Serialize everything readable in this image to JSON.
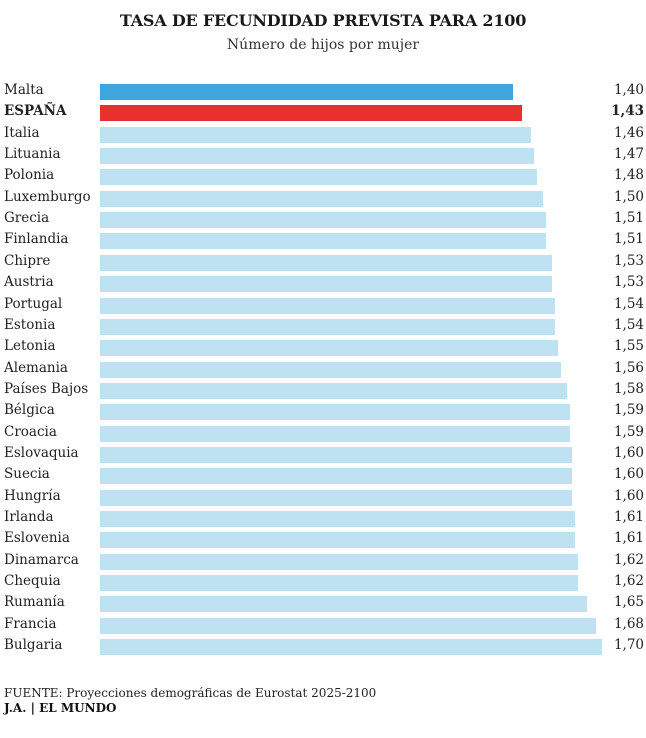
{
  "colors": {
    "highlight_spain": "#e8302f",
    "highlight_malta": "#3ea6dd",
    "default_bar": "#bfe2f3"
  },
  "chart_data": {
    "type": "bar",
    "orientation": "horizontal",
    "title": "TASA DE FECUNDIDAD PREVISTA PARA 2100",
    "subtitle": "Número de hijos por mujer",
    "xlim": [
      0,
      1.7
    ],
    "items": [
      {
        "label": "Malta",
        "value": 1.4,
        "display": "1,40",
        "style": "malta"
      },
      {
        "label": "ESPAÑA",
        "value": 1.43,
        "display": "1,43",
        "style": "spain"
      },
      {
        "label": "Italia",
        "value": 1.46,
        "display": "1,46",
        "style": "default"
      },
      {
        "label": "Lituania",
        "value": 1.47,
        "display": "1,47",
        "style": "default"
      },
      {
        "label": "Polonia",
        "value": 1.48,
        "display": "1,48",
        "style": "default"
      },
      {
        "label": "Luxemburgo",
        "value": 1.5,
        "display": "1,50",
        "style": "default"
      },
      {
        "label": "Grecia",
        "value": 1.51,
        "display": "1,51",
        "style": "default"
      },
      {
        "label": "Finlandia",
        "value": 1.51,
        "display": "1,51",
        "style": "default"
      },
      {
        "label": "Chipre",
        "value": 1.53,
        "display": "1,53",
        "style": "default"
      },
      {
        "label": "Austria",
        "value": 1.53,
        "display": "1,53",
        "style": "default"
      },
      {
        "label": "Portugal",
        "value": 1.54,
        "display": "1,54",
        "style": "default"
      },
      {
        "label": "Estonia",
        "value": 1.54,
        "display": "1,54",
        "style": "default"
      },
      {
        "label": "Letonia",
        "value": 1.55,
        "display": "1,55",
        "style": "default"
      },
      {
        "label": "Alemania",
        "value": 1.56,
        "display": "1,56",
        "style": "default"
      },
      {
        "label": "Países Bajos",
        "value": 1.58,
        "display": "1,58",
        "style": "default"
      },
      {
        "label": "Bélgica",
        "value": 1.59,
        "display": "1,59",
        "style": "default"
      },
      {
        "label": "Croacia",
        "value": 1.59,
        "display": "1,59",
        "style": "default"
      },
      {
        "label": "Eslovaquia",
        "value": 1.6,
        "display": "1,60",
        "style": "default"
      },
      {
        "label": "Suecia",
        "value": 1.6,
        "display": "1,60",
        "style": "default"
      },
      {
        "label": "Hungría",
        "value": 1.6,
        "display": "1,60",
        "style": "default"
      },
      {
        "label": "Irlanda",
        "value": 1.61,
        "display": "1,61",
        "style": "default"
      },
      {
        "label": "Eslovenia",
        "value": 1.61,
        "display": "1,61",
        "style": "default"
      },
      {
        "label": "Dinamarca",
        "value": 1.62,
        "display": "1,62",
        "style": "default"
      },
      {
        "label": "Chequia",
        "value": 1.62,
        "display": "1,62",
        "style": "default"
      },
      {
        "label": "Rumanía",
        "value": 1.65,
        "display": "1,65",
        "style": "default"
      },
      {
        "label": "Francia",
        "value": 1.68,
        "display": "1,68",
        "style": "default"
      },
      {
        "label": "Bulgaria",
        "value": 1.7,
        "display": "1,70",
        "style": "default"
      }
    ]
  },
  "footer": {
    "source": "FUENTE: Proyecciones demográficas de Eurostat 2025-2100",
    "credit": "J.A. | EL MUNDO"
  }
}
